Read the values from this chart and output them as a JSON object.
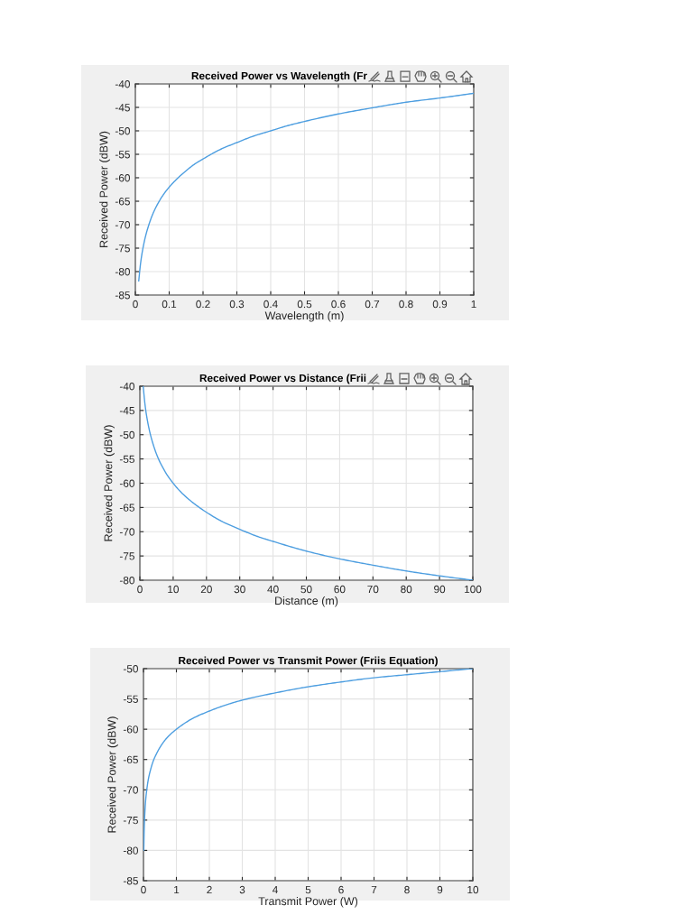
{
  "chart_data": [
    {
      "type": "line",
      "title": "Received Power vs Wavelength (Fr",
      "xlabel": "Wavelength (m)",
      "ylabel": "Received Power (dBW)",
      "color": "#4d9ee0",
      "grid": true,
      "x": [
        0.01,
        0.015,
        0.02,
        0.03,
        0.04,
        0.05,
        0.06,
        0.08,
        0.1,
        0.125,
        0.15,
        0.175,
        0.2,
        0.25,
        0.3,
        0.35,
        0.4,
        0.45,
        0.5,
        0.6,
        0.7,
        0.8,
        0.9,
        1.0
      ],
      "values": [
        -82,
        -78.5,
        -76,
        -72.5,
        -70,
        -68,
        -66.4,
        -63.9,
        -62,
        -60.1,
        -58.5,
        -57.1,
        -56,
        -54,
        -52.5,
        -51.1,
        -50,
        -48.9,
        -48,
        -46.4,
        -45.1,
        -43.9,
        -43,
        -42
      ],
      "xlim": [
        0,
        1
      ],
      "xticks": [
        0,
        0.1,
        0.2,
        0.3,
        0.4,
        0.5,
        0.6,
        0.7,
        0.8,
        0.9,
        1
      ],
      "ylim": [
        -85,
        -40
      ],
      "yticks": [
        -85,
        -80,
        -75,
        -70,
        -65,
        -60,
        -55,
        -50,
        -45,
        -40
      ]
    },
    {
      "type": "line",
      "title": "Received Power vs Distance (Frii",
      "xlabel": "Distance (m)",
      "ylabel": "Received Power (dBW)",
      "color": "#4d9ee0",
      "grid": true,
      "x": [
        1,
        1.5,
        2,
        3,
        4,
        5,
        6,
        7,
        8,
        10,
        12,
        15,
        20,
        25,
        30,
        35,
        40,
        50,
        60,
        70,
        80,
        90,
        100
      ],
      "values": [
        -40,
        -43.5,
        -46,
        -49.5,
        -52,
        -54,
        -55.6,
        -56.9,
        -58.1,
        -60,
        -61.6,
        -63.5,
        -66,
        -68,
        -69.5,
        -70.9,
        -72,
        -74,
        -75.6,
        -76.9,
        -78.1,
        -79.1,
        -80
      ],
      "xlim": [
        0,
        100
      ],
      "xticks": [
        0,
        10,
        20,
        30,
        40,
        50,
        60,
        70,
        80,
        90,
        100
      ],
      "ylim": [
        -80,
        -40
      ],
      "yticks": [
        -80,
        -75,
        -70,
        -65,
        -60,
        -55,
        -50,
        -45,
        -40
      ]
    },
    {
      "type": "line",
      "title": "Received Power vs Transmit Power (Friis Equation)",
      "xlabel": "Transmit Power (W)",
      "ylabel": "Received Power (dBW)",
      "color": "#4d9ee0",
      "grid": true,
      "x": [
        0.01,
        0.02,
        0.03,
        0.05,
        0.07,
        0.1,
        0.15,
        0.2,
        0.3,
        0.4,
        0.5,
        0.7,
        1,
        1.5,
        2,
        2.5,
        3,
        4,
        5,
        6,
        7,
        8,
        9,
        10
      ],
      "values": [
        -80,
        -77,
        -75.2,
        -73,
        -71.5,
        -70,
        -68.2,
        -67,
        -65.2,
        -64,
        -63,
        -61.5,
        -60,
        -58.2,
        -57,
        -56,
        -55.2,
        -54,
        -53,
        -52.2,
        -51.5,
        -51,
        -50.5,
        -50
      ],
      "xlim": [
        0,
        10
      ],
      "xticks": [
        0,
        1,
        2,
        3,
        4,
        5,
        6,
        7,
        8,
        9,
        10
      ],
      "ylim": [
        -85,
        -50
      ],
      "yticks": [
        -85,
        -80,
        -75,
        -70,
        -65,
        -60,
        -55,
        -50
      ]
    }
  ]
}
